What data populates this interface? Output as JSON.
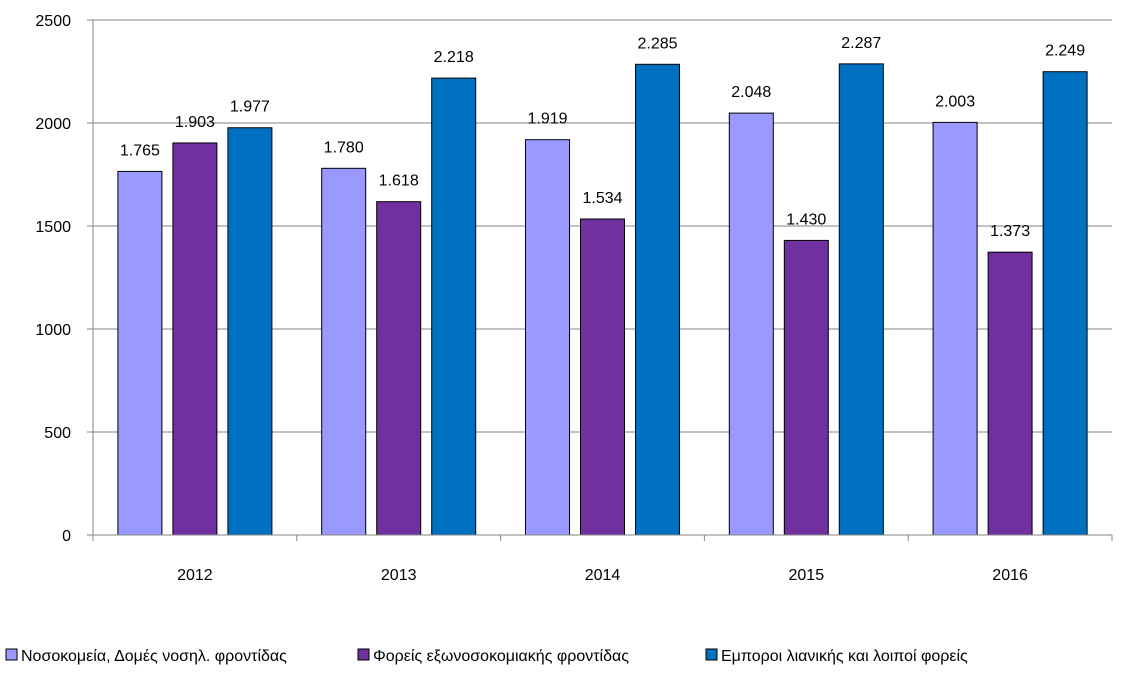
{
  "chart_data": {
    "type": "bar",
    "title": "",
    "xlabel": "",
    "ylabel": "",
    "categories": [
      "2012",
      "2013",
      "2014",
      "2015",
      "2016"
    ],
    "ylim": [
      0,
      2500
    ],
    "yticks": [
      0,
      500,
      1000,
      1500,
      2000,
      2500
    ],
    "ytick_labels": [
      "0",
      "500",
      "1000",
      "1500",
      "2000",
      "2500"
    ],
    "grid": true,
    "legend_position": "bottom",
    "series": [
      {
        "name": "Νοσοκομεία, Δομές νοσηλ. φροντίδας",
        "color": "#9999ff",
        "values": [
          1765,
          1780,
          1919,
          2048,
          2003
        ],
        "labels": [
          "1.765",
          "1.780",
          "1.919",
          "2.048",
          "2.003"
        ]
      },
      {
        "name": "Φορείς εξωνοσοκομιακής φροντίδας",
        "color": "#7030a0",
        "values": [
          1903,
          1618,
          1534,
          1430,
          1373
        ],
        "labels": [
          "1.903",
          "1.618",
          "1.534",
          "1.430",
          "1.373"
        ]
      },
      {
        "name": "Εμποροι λιανικής και λοιποί φορείς",
        "color": "#0070c0",
        "values": [
          1977,
          2218,
          2285,
          2287,
          2249
        ],
        "labels": [
          "1.977",
          "2.218",
          "2.285",
          "2.287",
          "2.249"
        ]
      }
    ]
  }
}
